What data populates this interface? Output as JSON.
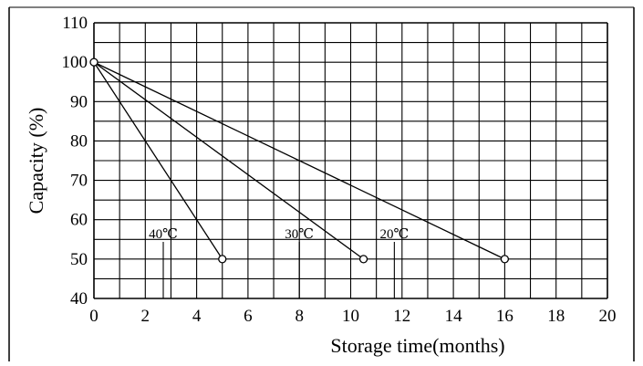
{
  "chart_data": {
    "type": "line",
    "title": "",
    "xlabel": "Storage time(months)",
    "ylabel": "Capacity (%)",
    "xlim": [
      0,
      20
    ],
    "ylim": [
      40,
      110
    ],
    "x_ticks": [
      "0",
      "2",
      "4",
      "6",
      "8",
      "10",
      "12",
      "14",
      "16",
      "18",
      "20"
    ],
    "y_ticks": [
      "40",
      "50",
      "60",
      "70",
      "80",
      "90",
      "100",
      "110"
    ],
    "grid": true,
    "series": [
      {
        "name": "40℃",
        "x": [
          0,
          5
        ],
        "y": [
          100,
          50
        ]
      },
      {
        "name": "30℃",
        "x": [
          0,
          10.5
        ],
        "y": [
          100,
          50
        ]
      },
      {
        "name": "20℃",
        "x": [
          0,
          16
        ],
        "y": [
          100,
          50
        ]
      }
    ],
    "colors": {
      "line": "#000000",
      "grid": "#000000"
    }
  }
}
